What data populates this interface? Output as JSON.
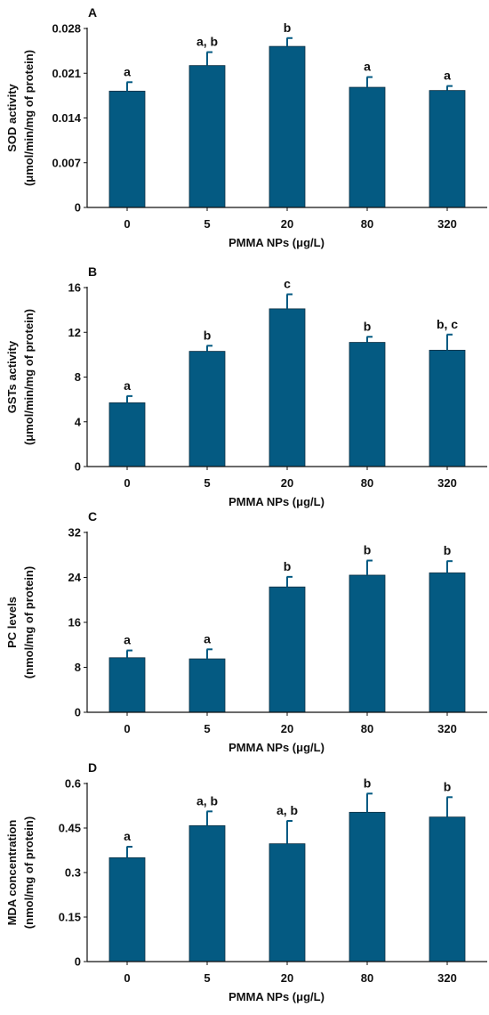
{
  "chart_data": [
    {
      "type": "bar",
      "panel_label": "A",
      "categories": [
        "0",
        "5",
        "20",
        "80",
        "320"
      ],
      "values": [
        0.0182,
        0.0222,
        0.0252,
        0.0188,
        0.0183
      ],
      "errors": [
        0.0014,
        0.0021,
        0.0013,
        0.0016,
        0.0007
      ],
      "significance": [
        "a",
        "a, b",
        "b",
        "a",
        "a"
      ],
      "xlabel": "PMMA NPs (μg/L)",
      "ylabel": [
        "SOD activity",
        "(μmol/min/mg of protein)"
      ],
      "yticks": [
        "0",
        "0.007",
        "0.014",
        "0.021",
        "0.028"
      ],
      "ylim": [
        0,
        0.028
      ],
      "bar_color": "#045a82",
      "grid": false
    },
    {
      "type": "bar",
      "panel_label": "B",
      "categories": [
        "0",
        "5",
        "20",
        "80",
        "320"
      ],
      "values": [
        5.7,
        10.3,
        14.1,
        11.1,
        10.4
      ],
      "errors": [
        0.6,
        0.5,
        1.3,
        0.5,
        1.4
      ],
      "significance": [
        "a",
        "b",
        "c",
        "b",
        "b, c"
      ],
      "xlabel": "PMMA NPs (μg/L)",
      "ylabel": [
        "GSTs activity",
        "(μmol/min/mg of protein)"
      ],
      "yticks": [
        "0",
        "4",
        "8",
        "12",
        "16"
      ],
      "ylim": [
        0,
        16
      ],
      "bar_color": "#045a82",
      "grid": false
    },
    {
      "type": "bar",
      "panel_label": "C",
      "categories": [
        "0",
        "5",
        "20",
        "80",
        "320"
      ],
      "values": [
        9.7,
        9.5,
        22.3,
        24.4,
        24.8
      ],
      "errors": [
        1.3,
        1.7,
        1.8,
        2.6,
        2.1
      ],
      "significance": [
        "a",
        "a",
        "b",
        "b",
        "b"
      ],
      "xlabel": "PMMA NPs (μg/L)",
      "ylabel": [
        "PC levels",
        "(nmol/mg of protein)"
      ],
      "yticks": [
        "0",
        "8",
        "16",
        "24",
        "32"
      ],
      "ylim": [
        0,
        32
      ],
      "bar_color": "#045a82",
      "grid": false
    },
    {
      "type": "bar",
      "panel_label": "D",
      "categories": [
        "0",
        "5",
        "20",
        "80",
        "320"
      ],
      "values": [
        0.35,
        0.458,
        0.397,
        0.503,
        0.487
      ],
      "errors": [
        0.037,
        0.048,
        0.077,
        0.063,
        0.067
      ],
      "significance": [
        "a",
        "a, b",
        "a, b",
        "b",
        "b"
      ],
      "xlabel": "PMMA NPs (μg/L)",
      "ylabel": [
        "MDA concentration",
        "(nmol/mg of protein)"
      ],
      "yticks": [
        "0",
        "0.15",
        "0.3",
        "0.45",
        "0.6"
      ],
      "ylim": [
        0,
        0.6
      ],
      "bar_color": "#045a82",
      "grid": false
    }
  ]
}
